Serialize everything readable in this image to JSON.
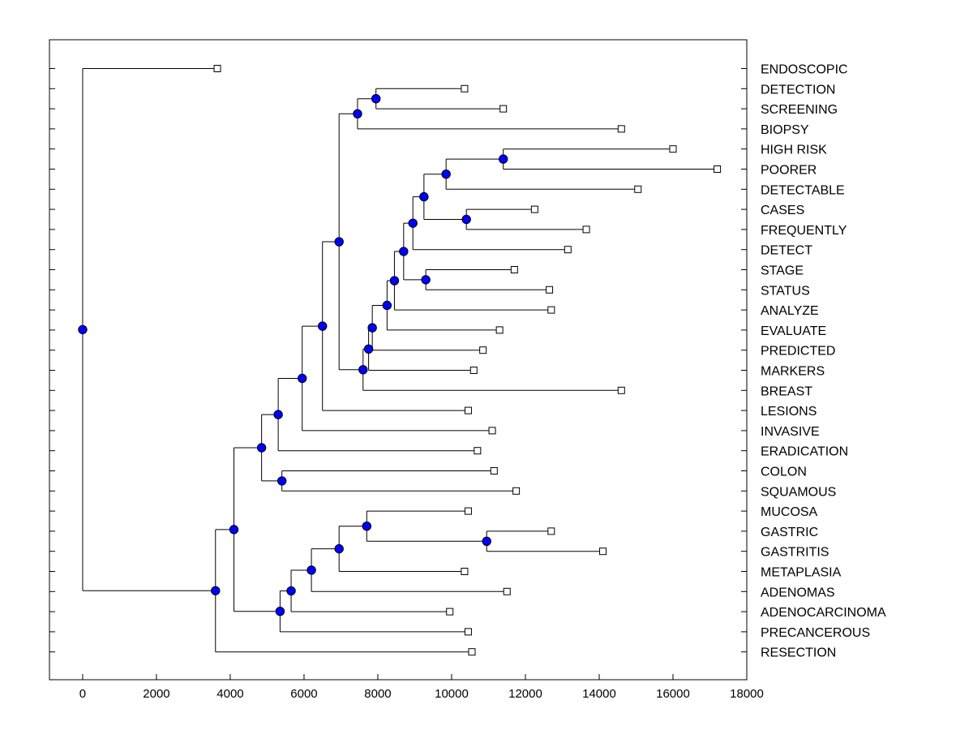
{
  "chart_data": {
    "type": "dendrogram",
    "title": "",
    "xlabel": "",
    "ylabel": "",
    "xlim": [
      -900,
      18000
    ],
    "x_ticks": [
      "0",
      "2000",
      "4000",
      "6000",
      "8000",
      "10000",
      "12000",
      "14000",
      "16000",
      "18000"
    ],
    "x_tick_values": [
      0,
      2000,
      4000,
      6000,
      8000,
      10000,
      12000,
      14000,
      16000,
      18000
    ],
    "colors": {
      "node_fill": "#0000ff",
      "line": "#000000",
      "leaf_fill": "#ffffff"
    },
    "leaves": [
      {
        "id": "L0",
        "label": "ENDOSCOPIC",
        "x": 3650
      },
      {
        "id": "L1",
        "label": "DETECTION",
        "x": 10350
      },
      {
        "id": "L2",
        "label": "SCREENING",
        "x": 11400
      },
      {
        "id": "L3",
        "label": "BIOPSY",
        "x": 14600
      },
      {
        "id": "L4",
        "label": "HIGH RISK",
        "x": 16000
      },
      {
        "id": "L5",
        "label": "POORER",
        "x": 17200
      },
      {
        "id": "L6",
        "label": "DETECTABLE",
        "x": 15050
      },
      {
        "id": "L7",
        "label": "CASES",
        "x": 12250
      },
      {
        "id": "L8",
        "label": "FREQUENTLY",
        "x": 13650
      },
      {
        "id": "L9",
        "label": "DETECT",
        "x": 13150
      },
      {
        "id": "L10",
        "label": "STAGE",
        "x": 11700
      },
      {
        "id": "L11",
        "label": "STATUS",
        "x": 12650
      },
      {
        "id": "L12",
        "label": "ANALYZE",
        "x": 12700
      },
      {
        "id": "L13",
        "label": "EVALUATE",
        "x": 11300
      },
      {
        "id": "L14",
        "label": "PREDICTED",
        "x": 10850
      },
      {
        "id": "L15",
        "label": "MARKERS",
        "x": 10600
      },
      {
        "id": "L16",
        "label": "BREAST",
        "x": 14600
      },
      {
        "id": "L17",
        "label": "LESIONS",
        "x": 10450
      },
      {
        "id": "L18",
        "label": "INVASIVE",
        "x": 11100
      },
      {
        "id": "L19",
        "label": "ERADICATION",
        "x": 10700
      },
      {
        "id": "L20",
        "label": "COLON",
        "x": 11150
      },
      {
        "id": "L21",
        "label": "SQUAMOUS",
        "x": 11750
      },
      {
        "id": "L22",
        "label": "MUCOSA",
        "x": 10450
      },
      {
        "id": "L23",
        "label": "GASTRIC",
        "x": 12700
      },
      {
        "id": "L24",
        "label": "GASTRITIS",
        "x": 14100
      },
      {
        "id": "L25",
        "label": "METAPLASIA",
        "x": 10350
      },
      {
        "id": "L26",
        "label": "ADENOMAS",
        "x": 11500
      },
      {
        "id": "L27",
        "label": "ADENOCARCINOMA",
        "x": 9950
      },
      {
        "id": "L28",
        "label": "PRECANCEROUS",
        "x": 10450
      },
      {
        "id": "L29",
        "label": "RESECTION",
        "x": 10550
      }
    ],
    "merges": [
      {
        "id": "A",
        "x": 7950,
        "children": [
          "L1",
          "L2"
        ]
      },
      {
        "id": "B",
        "x": 7450,
        "children": [
          "A",
          "L3"
        ]
      },
      {
        "id": "C",
        "x": 11400,
        "children": [
          "L4",
          "L5"
        ]
      },
      {
        "id": "D",
        "x": 9850,
        "children": [
          "C",
          "L6"
        ]
      },
      {
        "id": "E",
        "x": 10400,
        "children": [
          "L7",
          "L8"
        ]
      },
      {
        "id": "F",
        "x": 9250,
        "children": [
          "D",
          "E"
        ]
      },
      {
        "id": "G",
        "x": 8950,
        "children": [
          "F",
          "L9"
        ]
      },
      {
        "id": "H",
        "x": 9300,
        "children": [
          "L10",
          "L11"
        ]
      },
      {
        "id": "I",
        "x": 8700,
        "children": [
          "G",
          "H"
        ]
      },
      {
        "id": "J",
        "x": 8450,
        "children": [
          "I",
          "L12"
        ]
      },
      {
        "id": "K",
        "x": 8250,
        "children": [
          "J",
          "L13"
        ]
      },
      {
        "id": "Lm",
        "x": 7850,
        "children": [
          "K",
          "L14"
        ]
      },
      {
        "id": "M",
        "x": 7750,
        "children": [
          "Lm",
          "L15"
        ]
      },
      {
        "id": "N",
        "x": 7600,
        "children": [
          "M",
          "L16"
        ]
      },
      {
        "id": "O",
        "x": 6950,
        "children": [
          "B",
          "N"
        ]
      },
      {
        "id": "P",
        "x": 6500,
        "children": [
          "O",
          "L17"
        ]
      },
      {
        "id": "Q",
        "x": 5950,
        "children": [
          "P",
          "L18"
        ]
      },
      {
        "id": "R",
        "x": 5300,
        "children": [
          "Q",
          "L19"
        ]
      },
      {
        "id": "S",
        "x": 5400,
        "children": [
          "L20",
          "L21"
        ]
      },
      {
        "id": "T",
        "x": 4850,
        "children": [
          "R",
          "S"
        ]
      },
      {
        "id": "U",
        "x": 10950,
        "children": [
          "L23",
          "L24"
        ]
      },
      {
        "id": "V",
        "x": 7700,
        "children": [
          "L22",
          "U"
        ]
      },
      {
        "id": "W",
        "x": 6950,
        "children": [
          "V",
          "L25"
        ]
      },
      {
        "id": "X",
        "x": 6200,
        "children": [
          "W",
          "L26"
        ]
      },
      {
        "id": "Y",
        "x": 5650,
        "children": [
          "X",
          "L27"
        ]
      },
      {
        "id": "Z",
        "x": 5350,
        "children": [
          "Y",
          "L28"
        ]
      },
      {
        "id": "AA",
        "x": 4100,
        "children": [
          "T",
          "Z"
        ]
      },
      {
        "id": "AB",
        "x": 3600,
        "children": [
          "AA",
          "L29"
        ]
      },
      {
        "id": "ROOT",
        "x": 0,
        "children": [
          "L0",
          "AB"
        ]
      }
    ]
  }
}
